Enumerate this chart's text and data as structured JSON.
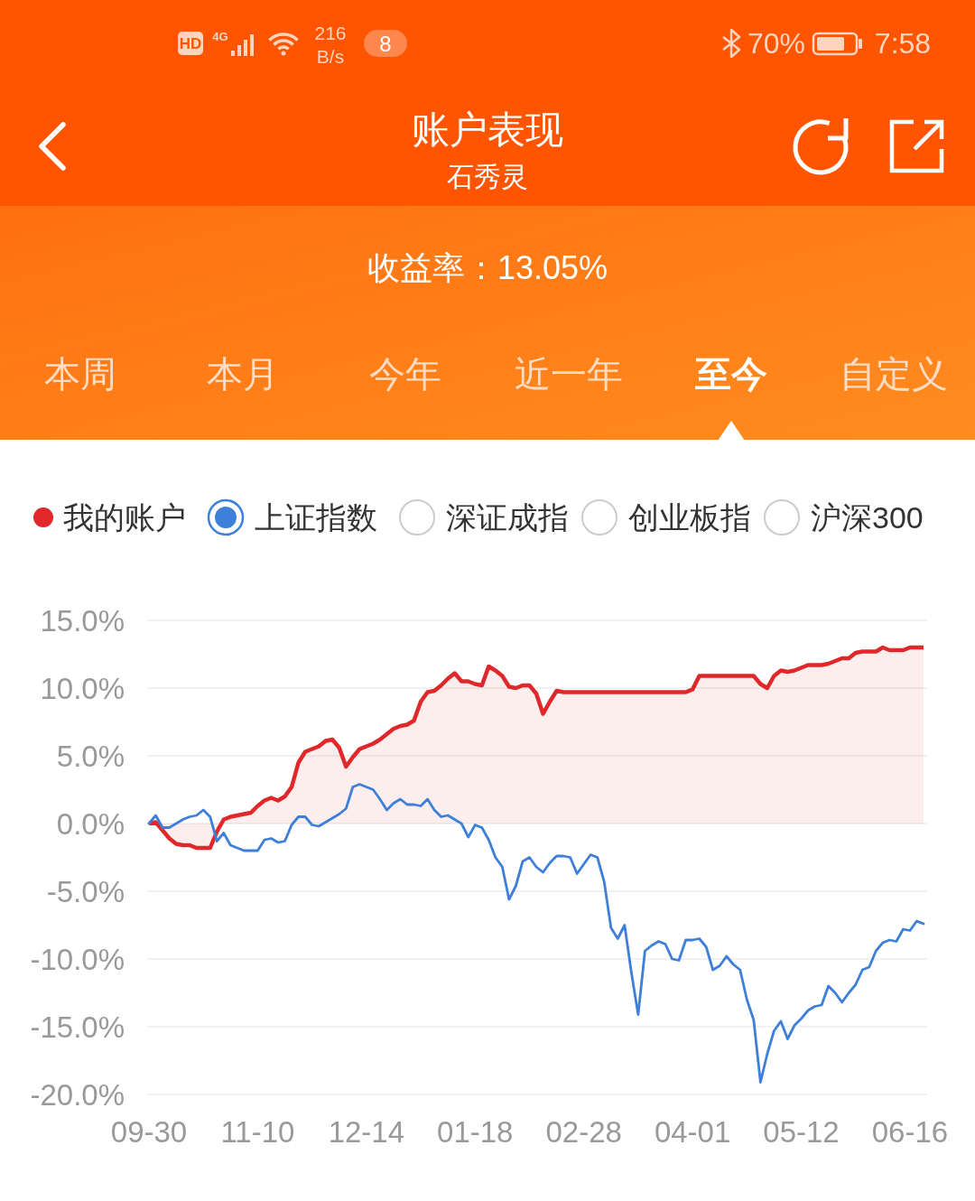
{
  "chart_data": {
    "type": "line",
    "title": "账户表现",
    "subtitle": "石秀灵",
    "categories": [
      "09-30",
      null,
      null,
      null,
      null,
      null,
      null,
      null,
      null,
      null,
      null,
      null,
      null,
      null,
      null,
      null,
      "11-10",
      null,
      null,
      null,
      null,
      null,
      null,
      null,
      null,
      null,
      null,
      null,
      null,
      null,
      null,
      null,
      "12-14",
      null,
      null,
      null,
      null,
      null,
      null,
      null,
      null,
      null,
      null,
      null,
      null,
      null,
      null,
      null,
      "01-18",
      null,
      null,
      null,
      null,
      null,
      null,
      null,
      null,
      null,
      null,
      null,
      null,
      null,
      null,
      null,
      "02-28",
      null,
      null,
      null,
      null,
      null,
      null,
      null,
      null,
      null,
      null,
      null,
      null,
      null,
      null,
      null,
      "04-01",
      null,
      null,
      null,
      null,
      null,
      null,
      null,
      null,
      null,
      null,
      null,
      null,
      null,
      null,
      null,
      "05-12",
      null,
      null,
      null,
      null,
      null,
      null,
      null,
      null,
      null,
      null,
      null,
      null,
      null,
      null,
      null,
      "06-16",
      null,
      null
    ],
    "series": [
      {
        "name": "我的账户",
        "type": "area",
        "color": "#e0282a",
        "values": [
          0.0,
          0.1,
          -0.5,
          -1.1,
          -1.5,
          -1.6,
          -1.6,
          -1.8,
          -1.8,
          -1.8,
          -0.6,
          0.3,
          0.5,
          0.6,
          0.7,
          0.8,
          1.3,
          1.7,
          1.9,
          1.7,
          2.0,
          2.7,
          4.5,
          5.3,
          5.5,
          5.7,
          6.1,
          6.2,
          5.6,
          4.2,
          4.9,
          5.5,
          5.7,
          5.9,
          6.2,
          6.6,
          7.0,
          7.2,
          7.3,
          7.6,
          9.0,
          9.7,
          9.8,
          10.2,
          10.7,
          11.1,
          10.5,
          10.5,
          10.3,
          10.2,
          11.6,
          11.3,
          10.9,
          10.1,
          10.0,
          10.2,
          10.2,
          9.6,
          8.1,
          9.0,
          9.8,
          9.7,
          9.7,
          9.7,
          9.7,
          9.7,
          9.7,
          9.7,
          9.7,
          9.7,
          9.7,
          9.7,
          9.7,
          9.7,
          9.7,
          9.7,
          9.7,
          9.7,
          9.7,
          9.7,
          9.9,
          10.9,
          10.9,
          10.9,
          10.9,
          10.9,
          10.9,
          10.9,
          10.9,
          10.9,
          10.3,
          10.0,
          10.9,
          11.3,
          11.2,
          11.3,
          11.5,
          11.7,
          11.7,
          11.7,
          11.8,
          12.0,
          12.2,
          12.2,
          12.6,
          12.7,
          12.7,
          12.7,
          13.0,
          12.8,
          12.8,
          12.8,
          13.0,
          13.0,
          13.0
        ]
      },
      {
        "name": "上证指数",
        "type": "line",
        "color": "#3d7fd9",
        "values": [
          0.0,
          0.6,
          -0.3,
          -0.3,
          0.0,
          0.3,
          0.5,
          0.6,
          1.0,
          0.5,
          -1.3,
          -0.7,
          -1.6,
          -1.8,
          -2.0,
          -2.0,
          -2.0,
          -1.2,
          -1.1,
          -1.4,
          -1.3,
          -0.1,
          0.5,
          0.5,
          -0.1,
          -0.2,
          0.1,
          0.4,
          0.7,
          1.1,
          2.7,
          2.9,
          2.7,
          2.5,
          1.8,
          1.0,
          1.5,
          1.8,
          1.4,
          1.4,
          1.3,
          1.8,
          1.0,
          0.5,
          0.6,
          0.3,
          0.0,
          -1.0,
          -0.1,
          -0.3,
          -1.2,
          -2.5,
          -3.2,
          -5.6,
          -4.6,
          -2.8,
          -2.5,
          -3.2,
          -3.6,
          -2.9,
          -2.4,
          -2.4,
          -2.5,
          -3.7,
          -3.0,
          -2.3,
          -2.5,
          -4.3,
          -7.7,
          -8.5,
          -7.5,
          -11.0,
          -14.1,
          -9.4,
          -9.0,
          -8.7,
          -8.9,
          -10.0,
          -10.1,
          -8.6,
          -8.6,
          -8.5,
          -9.1,
          -10.8,
          -10.5,
          -9.8,
          -10.4,
          -10.8,
          -13.0,
          -14.5,
          -19.1,
          -17.0,
          -15.3,
          -14.6,
          -15.9,
          -14.9,
          -14.4,
          -13.8,
          -13.5,
          -13.4,
          -12.0,
          -12.5,
          -13.2,
          -12.5,
          -11.9,
          -10.8,
          -10.6,
          -9.4,
          -8.8,
          -8.6,
          -8.7,
          -7.8,
          -7.9,
          -7.2,
          -7.4
        ]
      }
    ],
    "ylim": [
      -20,
      15
    ],
    "yticks": [
      {
        "value": 15,
        "label": "15.0%"
      },
      {
        "value": 10,
        "label": "10.0%"
      },
      {
        "value": 5,
        "label": "5.0%"
      },
      {
        "value": 0,
        "label": "0.0%"
      },
      {
        "value": -5,
        "label": "-5.0%"
      },
      {
        "value": -10,
        "label": "-10.0%"
      },
      {
        "value": -15,
        "label": "-15.0%"
      },
      {
        "value": -20,
        "label": "-20.0%"
      }
    ],
    "grid": "y",
    "legend": "top",
    "annotations": [
      "HD",
      "4G",
      "216",
      "B/s",
      "8",
      "70%",
      "7:58",
      "收益率：13.05%",
      "本周",
      "本月",
      "今年",
      "近一年",
      "至今",
      "自定义",
      "深证成指",
      "创业板指",
      "沪深300"
    ]
  }
}
